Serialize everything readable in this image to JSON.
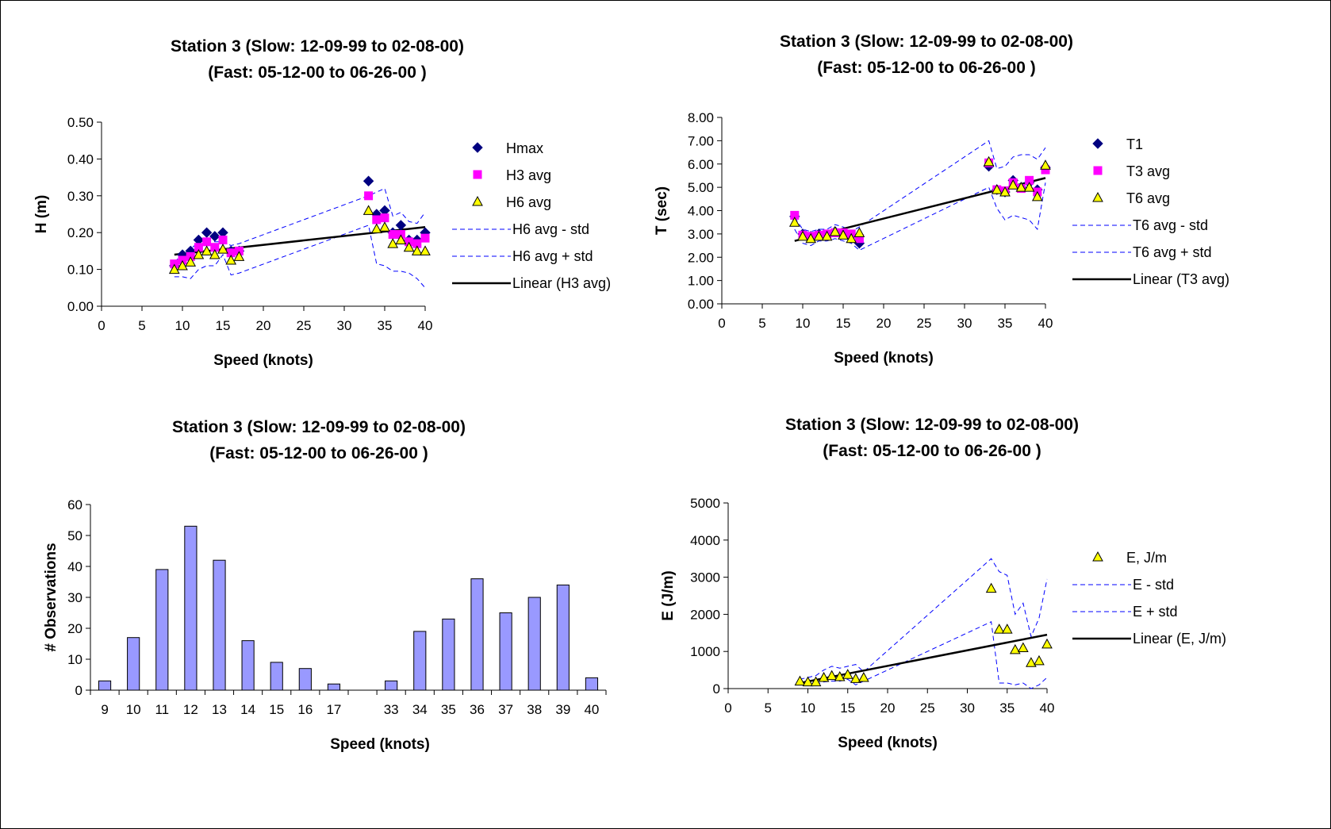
{
  "chart_data": [
    {
      "type": "scatter",
      "title": "Station 3 (Slow: 12-09-99 to 02-08-00)",
      "subtitle": "(Fast: 05-12-00 to 06-26-00 )",
      "xlabel": "Speed (knots)",
      "ylabel": "H (m)",
      "xlim": [
        0,
        40
      ],
      "ylim": [
        0,
        0.5
      ],
      "x_ticks": [
        "0",
        "5",
        "10",
        "15",
        "20",
        "25",
        "30",
        "35",
        "40"
      ],
      "y_ticks": [
        "0.00",
        "0.10",
        "0.20",
        "0.30",
        "0.40",
        "0.50"
      ],
      "x": [
        9,
        10,
        11,
        12,
        13,
        14,
        15,
        16,
        17,
        33,
        34,
        35,
        36,
        37,
        38,
        39,
        40
      ],
      "series": [
        {
          "name": "Hmax",
          "kind": "marker",
          "marker": "diamond",
          "color": "#000080",
          "values": [
            0.11,
            0.14,
            0.15,
            0.18,
            0.2,
            0.19,
            0.2,
            0.15,
            0.15,
            0.34,
            0.25,
            0.26,
            0.2,
            0.22,
            0.18,
            0.18,
            0.2
          ]
        },
        {
          "name": "H3 avg",
          "kind": "marker",
          "marker": "square",
          "color": "#FF00FF",
          "values": [
            0.115,
            0.125,
            0.135,
            0.16,
            0.175,
            0.16,
            0.18,
            0.145,
            0.15,
            0.3,
            0.235,
            0.24,
            0.195,
            0.195,
            0.175,
            0.17,
            0.185
          ]
        },
        {
          "name": "H6 avg",
          "kind": "marker",
          "marker": "triangle",
          "color": "#FFFF00",
          "values": [
            0.1,
            0.11,
            0.12,
            0.14,
            0.15,
            0.14,
            0.155,
            0.125,
            0.135,
            0.26,
            0.21,
            0.215,
            0.17,
            0.18,
            0.16,
            0.15,
            0.15
          ]
        },
        {
          "name": "H6 avg - std",
          "kind": "dashed",
          "color": "#0000FF",
          "values": [
            0.08,
            0.08,
            0.075,
            0.1,
            0.11,
            0.11,
            0.14,
            0.085,
            0.09,
            0.22,
            0.115,
            0.11,
            0.095,
            0.095,
            0.09,
            0.075,
            0.05
          ]
        },
        {
          "name": "H6 avg + std",
          "kind": "dashed",
          "color": "#0000FF",
          "values": [
            0.12,
            0.14,
            0.155,
            0.175,
            0.18,
            0.175,
            0.175,
            0.165,
            0.17,
            0.3,
            0.31,
            0.32,
            0.245,
            0.255,
            0.23,
            0.225,
            0.255
          ]
        },
        {
          "name": "Linear (H3 avg)",
          "kind": "trend",
          "color": "#000000",
          "x": [
            9,
            40
          ],
          "values": [
            0.14,
            0.215
          ]
        }
      ]
    },
    {
      "type": "scatter",
      "title": "Station 3 (Slow: 12-09-99 to 02-08-00)",
      "subtitle": "(Fast: 05-12-00 to 06-26-00  )",
      "xlabel": "Speed (knots)",
      "ylabel": "T (sec)",
      "xlim": [
        0,
        40
      ],
      "ylim": [
        0,
        8
      ],
      "x_ticks": [
        "0",
        "5",
        "10",
        "15",
        "20",
        "25",
        "30",
        "35",
        "40"
      ],
      "y_ticks": [
        "0.00",
        "1.00",
        "2.00",
        "3.00",
        "4.00",
        "5.00",
        "6.00",
        "7.00",
        "8.00"
      ],
      "x": [
        9,
        10,
        11,
        12,
        13,
        14,
        15,
        16,
        17,
        33,
        34,
        35,
        36,
        37,
        38,
        39,
        40
      ],
      "series": [
        {
          "name": "T1",
          "kind": "marker",
          "marker": "diamond",
          "color": "#000080",
          "values": [
            3.75,
            3.0,
            2.9,
            3.0,
            2.95,
            3.1,
            3.0,
            2.9,
            2.6,
            5.9,
            4.9,
            4.8,
            5.3,
            5.0,
            5.2,
            4.9,
            5.85
          ]
        },
        {
          "name": "T3 avg",
          "kind": "marker",
          "marker": "square",
          "color": "#FF00FF",
          "values": [
            3.8,
            2.95,
            2.9,
            2.95,
            3.0,
            3.05,
            3.05,
            3.0,
            2.8,
            6.05,
            4.9,
            4.85,
            5.2,
            4.95,
            5.3,
            4.8,
            5.75
          ]
        },
        {
          "name": "T6 avg",
          "kind": "marker",
          "marker": "triangle",
          "color": "#FFFF00",
          "values": [
            3.5,
            2.9,
            2.8,
            2.9,
            2.9,
            3.1,
            2.95,
            2.8,
            3.05,
            6.1,
            4.9,
            4.8,
            5.1,
            5.0,
            5.0,
            4.6,
            5.95
          ]
        },
        {
          "name": "T6 avg - std",
          "kind": "dashed",
          "color": "#0000FF",
          "values": [
            3.2,
            2.6,
            2.5,
            2.7,
            2.7,
            2.8,
            2.7,
            2.6,
            2.3,
            5.0,
            4.1,
            3.6,
            3.8,
            3.7,
            3.6,
            3.2,
            5.2
          ]
        },
        {
          "name": "T6 avg + std",
          "kind": "dashed",
          "color": "#0000FF",
          "values": [
            3.7,
            3.2,
            3.1,
            3.2,
            3.2,
            3.4,
            3.3,
            3.1,
            3.3,
            7.0,
            5.8,
            5.9,
            6.3,
            6.4,
            6.4,
            6.2,
            6.7
          ]
        },
        {
          "name": "Linear (T3 avg)",
          "kind": "trend",
          "color": "#000000",
          "x": [
            9,
            40
          ],
          "values": [
            2.7,
            5.4
          ]
        }
      ]
    },
    {
      "type": "bar",
      "title": "Station 3 (Slow: 12-09-99 to 02-08-00)",
      "subtitle": "(Fast:  05-12-00 to 06-26-00 )",
      "xlabel": "Speed (knots)",
      "ylabel": "# Observations",
      "ylim": [
        0,
        60
      ],
      "y_ticks": [
        "0",
        "10",
        "20",
        "30",
        "40",
        "50",
        "60"
      ],
      "bar_color": "#9999FF",
      "categories": [
        "9",
        "10",
        "11",
        "12",
        "13",
        "14",
        "15",
        "16",
        "17",
        "",
        "33",
        "34",
        "35",
        "36",
        "37",
        "38",
        "39",
        "40"
      ],
      "values": [
        3,
        17,
        39,
        53,
        42,
        16,
        9,
        7,
        2,
        null,
        3,
        19,
        23,
        36,
        25,
        30,
        34,
        4
      ]
    },
    {
      "type": "scatter",
      "title": "Station 3 (Slow: 12-09-99 to 02-08-00)",
      "subtitle": "(Fast:  05-12-00 to 06-26-00 )",
      "xlabel": "Speed (knots)",
      "ylabel": "E (J/m)",
      "xlim": [
        0,
        40
      ],
      "ylim": [
        0,
        5000
      ],
      "x_ticks": [
        "0",
        "5",
        "10",
        "15",
        "20",
        "25",
        "30",
        "35",
        "40"
      ],
      "y_ticks": [
        "0",
        "1000",
        "2000",
        "3000",
        "4000",
        "5000"
      ],
      "x": [
        9,
        10,
        11,
        12,
        13,
        14,
        15,
        16,
        17,
        33,
        34,
        35,
        36,
        37,
        38,
        39,
        40
      ],
      "series": [
        {
          "name": "E, J/m",
          "kind": "marker",
          "marker": "triangle",
          "color": "#FFFF00",
          "values": [
            200,
            180,
            180,
            300,
            350,
            320,
            380,
            270,
            300,
            2700,
            1600,
            1600,
            1050,
            1100,
            700,
            750,
            1200
          ]
        },
        {
          "name": "E - std",
          "kind": "dashed",
          "color": "#0000FF",
          "values": [
            150,
            100,
            120,
            180,
            200,
            200,
            250,
            100,
            200,
            1800,
            150,
            150,
            100,
            150,
            0,
            100,
            300
          ]
        },
        {
          "name": "E + std",
          "kind": "dashed",
          "color": "#0000FF",
          "values": [
            250,
            300,
            350,
            500,
            600,
            550,
            600,
            650,
            450,
            3500,
            3150,
            3050,
            2000,
            2300,
            1400,
            1900,
            2950
          ]
        },
        {
          "name": "Linear (E, J/m)",
          "kind": "trend",
          "color": "#000000",
          "x": [
            9,
            40
          ],
          "values": [
            150,
            1450
          ]
        }
      ]
    }
  ]
}
